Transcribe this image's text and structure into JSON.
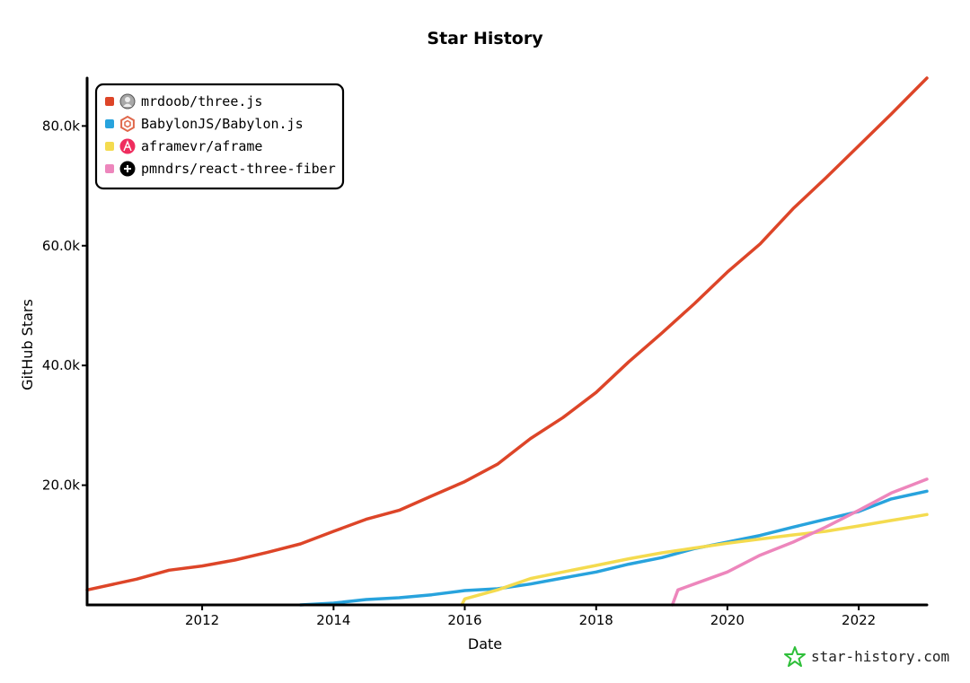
{
  "chart_data": {
    "type": "line",
    "title": "Star History",
    "xlabel": "Date",
    "ylabel": "GitHub Stars",
    "xlim": [
      "2010-04-01",
      "2023-01-15"
    ],
    "ylim": [
      0,
      88000
    ],
    "x_ticks": [
      "2012",
      "2014",
      "2016",
      "2018",
      "2020",
      "2022"
    ],
    "y_ticks": [
      {
        "value": 20000,
        "label": "20.0k"
      },
      {
        "value": 40000,
        "label": "40.0k"
      },
      {
        "value": 60000,
        "label": "60.0k"
      },
      {
        "value": 80000,
        "label": "80.0k"
      }
    ],
    "legend_position": "top-left",
    "grid": false,
    "series": [
      {
        "name": "mrdoob/three.js",
        "color": "#dd4528",
        "icon": "avatar-icon",
        "points": [
          [
            "2010-04-01",
            2500
          ],
          [
            "2011-01-01",
            4300
          ],
          [
            "2011-07-01",
            5800
          ],
          [
            "2012-01-01",
            6500
          ],
          [
            "2012-07-01",
            7500
          ],
          [
            "2013-01-01",
            8800
          ],
          [
            "2013-07-01",
            10200
          ],
          [
            "2014-01-01",
            12300
          ],
          [
            "2014-07-01",
            14300
          ],
          [
            "2015-01-01",
            15800
          ],
          [
            "2015-07-01",
            18200
          ],
          [
            "2016-01-01",
            20600
          ],
          [
            "2016-07-01",
            23500
          ],
          [
            "2017-01-01",
            27800
          ],
          [
            "2017-07-01",
            31300
          ],
          [
            "2018-01-01",
            35500
          ],
          [
            "2018-07-01",
            40600
          ],
          [
            "2019-01-01",
            45400
          ],
          [
            "2019-07-01",
            50300
          ],
          [
            "2020-01-01",
            55600
          ],
          [
            "2020-07-01",
            60300
          ],
          [
            "2021-01-01",
            66200
          ],
          [
            "2021-07-01",
            71300
          ],
          [
            "2022-01-01",
            76700
          ],
          [
            "2022-07-01",
            82000
          ],
          [
            "2023-01-15",
            88000
          ]
        ]
      },
      {
        "name": "BabylonJS/Babylon.js",
        "color": "#28a3dd",
        "icon": "babylon-logo-icon",
        "points": [
          [
            "2013-07-01",
            0
          ],
          [
            "2014-01-01",
            300
          ],
          [
            "2014-07-01",
            900
          ],
          [
            "2015-01-01",
            1200
          ],
          [
            "2015-07-01",
            1700
          ],
          [
            "2016-01-01",
            2400
          ],
          [
            "2016-07-01",
            2700
          ],
          [
            "2017-01-01",
            3500
          ],
          [
            "2017-07-01",
            4500
          ],
          [
            "2018-01-01",
            5500
          ],
          [
            "2018-07-01",
            6800
          ],
          [
            "2019-01-01",
            7900
          ],
          [
            "2019-07-01",
            9400
          ],
          [
            "2020-01-01",
            10500
          ],
          [
            "2020-07-01",
            11600
          ],
          [
            "2021-01-01",
            13000
          ],
          [
            "2021-07-01",
            14300
          ],
          [
            "2022-01-01",
            15600
          ],
          [
            "2022-07-01",
            17700
          ],
          [
            "2023-01-15",
            19000
          ]
        ]
      },
      {
        "name": "aframevr/aframe",
        "color": "#f4db4f",
        "icon": "aframe-logo-icon",
        "points": [
          [
            "2015-12-15",
            0
          ],
          [
            "2016-01-01",
            1000
          ],
          [
            "2016-07-01",
            2500
          ],
          [
            "2017-01-01",
            4400
          ],
          [
            "2017-07-01",
            5500
          ],
          [
            "2018-01-01",
            6600
          ],
          [
            "2018-07-01",
            7700
          ],
          [
            "2019-01-01",
            8700
          ],
          [
            "2019-07-01",
            9500
          ],
          [
            "2020-01-01",
            10300
          ],
          [
            "2020-07-01",
            11000
          ],
          [
            "2021-01-01",
            11700
          ],
          [
            "2021-07-01",
            12300
          ],
          [
            "2022-01-01",
            13200
          ],
          [
            "2022-07-01",
            14100
          ],
          [
            "2023-01-15",
            15100
          ]
        ]
      },
      {
        "name": "pmndrs/react-three-fiber",
        "color": "#ed86bc",
        "icon": "pmndrs-logo-icon",
        "points": [
          [
            "2019-03-01",
            0
          ],
          [
            "2019-04-01",
            2500
          ],
          [
            "2019-07-01",
            3500
          ],
          [
            "2020-01-01",
            5500
          ],
          [
            "2020-07-01",
            8300
          ],
          [
            "2021-01-01",
            10500
          ],
          [
            "2021-07-01",
            13000
          ],
          [
            "2022-01-01",
            15800
          ],
          [
            "2022-07-01",
            18700
          ],
          [
            "2023-01-15",
            21000
          ]
        ]
      }
    ]
  },
  "watermark": "star-history.com"
}
